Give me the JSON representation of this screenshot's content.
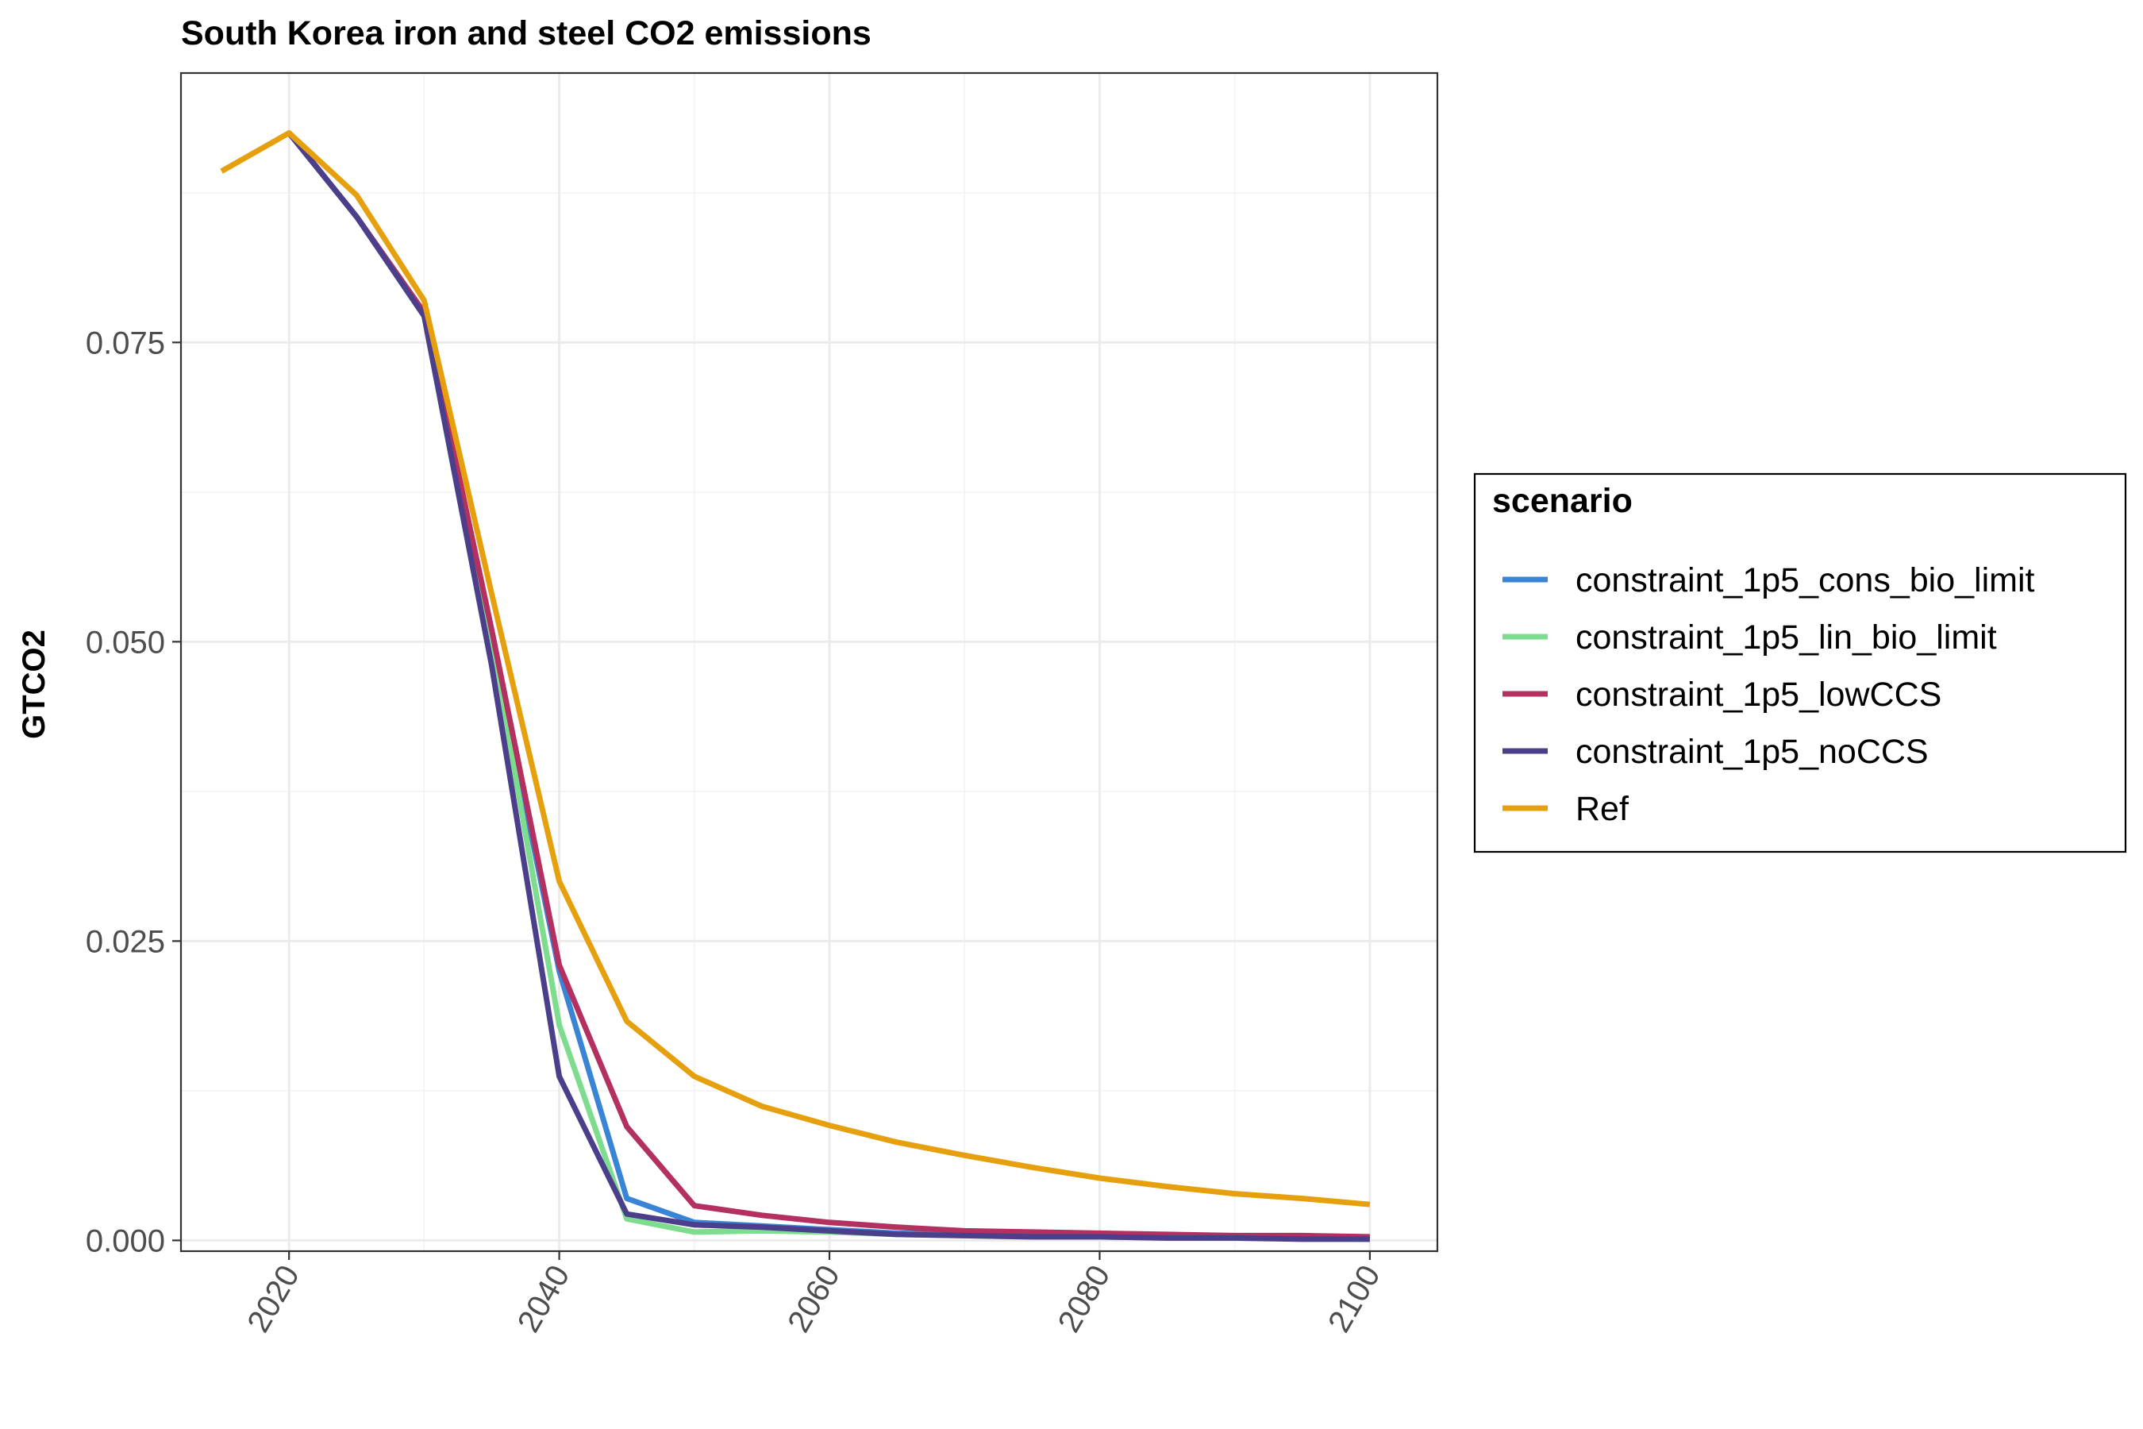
{
  "chart_data": {
    "type": "line",
    "title": "South Korea iron and steel CO2 emissions",
    "xlabel": "",
    "ylabel": "GTCO2",
    "xlim": [
      2012,
      2105
    ],
    "ylim": [
      -0.0009,
      0.0975
    ],
    "x_ticks": [
      2020,
      2040,
      2060,
      2080,
      2100
    ],
    "x_tick_labels": [
      "2020",
      "2040",
      "2060",
      "2080",
      "2100"
    ],
    "y_ticks": [
      0.0,
      0.025,
      0.05,
      0.075
    ],
    "y_tick_labels": [
      "0.000",
      "0.025",
      "0.050",
      "0.075"
    ],
    "grid": true,
    "legend_title": "scenario",
    "legend_position": "right",
    "series": [
      {
        "name": "constraint_1p5_cons_bio_limit",
        "color": "#3a84d6",
        "x": [
          2020,
          2025,
          2030,
          2035,
          2040,
          2045,
          2050,
          2055,
          2060,
          2065,
          2070,
          2075,
          2080,
          2085,
          2090,
          2095,
          2100
        ],
        "y": [
          0.0925,
          0.0855,
          0.0775,
          0.05,
          0.0225,
          0.0035,
          0.0015,
          0.0012,
          0.0009,
          0.0006,
          0.0005,
          0.0004,
          0.0004,
          0.0003,
          0.0003,
          0.0002,
          0.0002
        ]
      },
      {
        "name": "constraint_1p5_lin_bio_limit",
        "color": "#7ddc8e",
        "x": [
          2020,
          2025,
          2030,
          2035,
          2040,
          2045,
          2050,
          2055,
          2060,
          2065,
          2070,
          2075,
          2080,
          2085,
          2090,
          2095,
          2100
        ],
        "y": [
          0.0925,
          0.0855,
          0.0775,
          0.05,
          0.018,
          0.0018,
          0.0007,
          0.0008,
          0.0007,
          0.0005,
          0.0004,
          0.0003,
          0.0003,
          0.0002,
          0.0002,
          0.0002,
          0.0001
        ]
      },
      {
        "name": "constraint_1p5_lowCCS",
        "color": "#b33060",
        "x": [
          2020,
          2025,
          2030,
          2035,
          2040,
          2045,
          2050,
          2055,
          2060,
          2065,
          2070,
          2075,
          2080,
          2085,
          2090,
          2095,
          2100
        ],
        "y": [
          0.0925,
          0.0855,
          0.0775,
          0.051,
          0.023,
          0.0095,
          0.0029,
          0.0021,
          0.0015,
          0.0011,
          0.0008,
          0.0007,
          0.0006,
          0.0005,
          0.0004,
          0.0004,
          0.0003
        ]
      },
      {
        "name": "constraint_1p5_noCCS",
        "color": "#4b3f8c",
        "x": [
          2020,
          2025,
          2030,
          2035,
          2040,
          2045,
          2050,
          2055,
          2060,
          2065,
          2070,
          2075,
          2080,
          2085,
          2090,
          2095,
          2100
        ],
        "y": [
          0.0925,
          0.0855,
          0.0772,
          0.048,
          0.0137,
          0.0022,
          0.0013,
          0.0011,
          0.0008,
          0.0005,
          0.0004,
          0.0003,
          0.0003,
          0.0002,
          0.0002,
          0.0001,
          0.0001
        ]
      },
      {
        "name": "Ref",
        "color": "#e6a00e",
        "x": [
          2015,
          2020,
          2025,
          2030,
          2035,
          2040,
          2045,
          2050,
          2055,
          2060,
          2065,
          2070,
          2075,
          2080,
          2085,
          2090,
          2095,
          2100
        ],
        "y": [
          0.0893,
          0.0925,
          0.0873,
          0.0785,
          0.054,
          0.03,
          0.0183,
          0.0137,
          0.0112,
          0.0096,
          0.0082,
          0.0071,
          0.0061,
          0.0052,
          0.0045,
          0.0039,
          0.0035,
          0.003
        ]
      }
    ]
  }
}
